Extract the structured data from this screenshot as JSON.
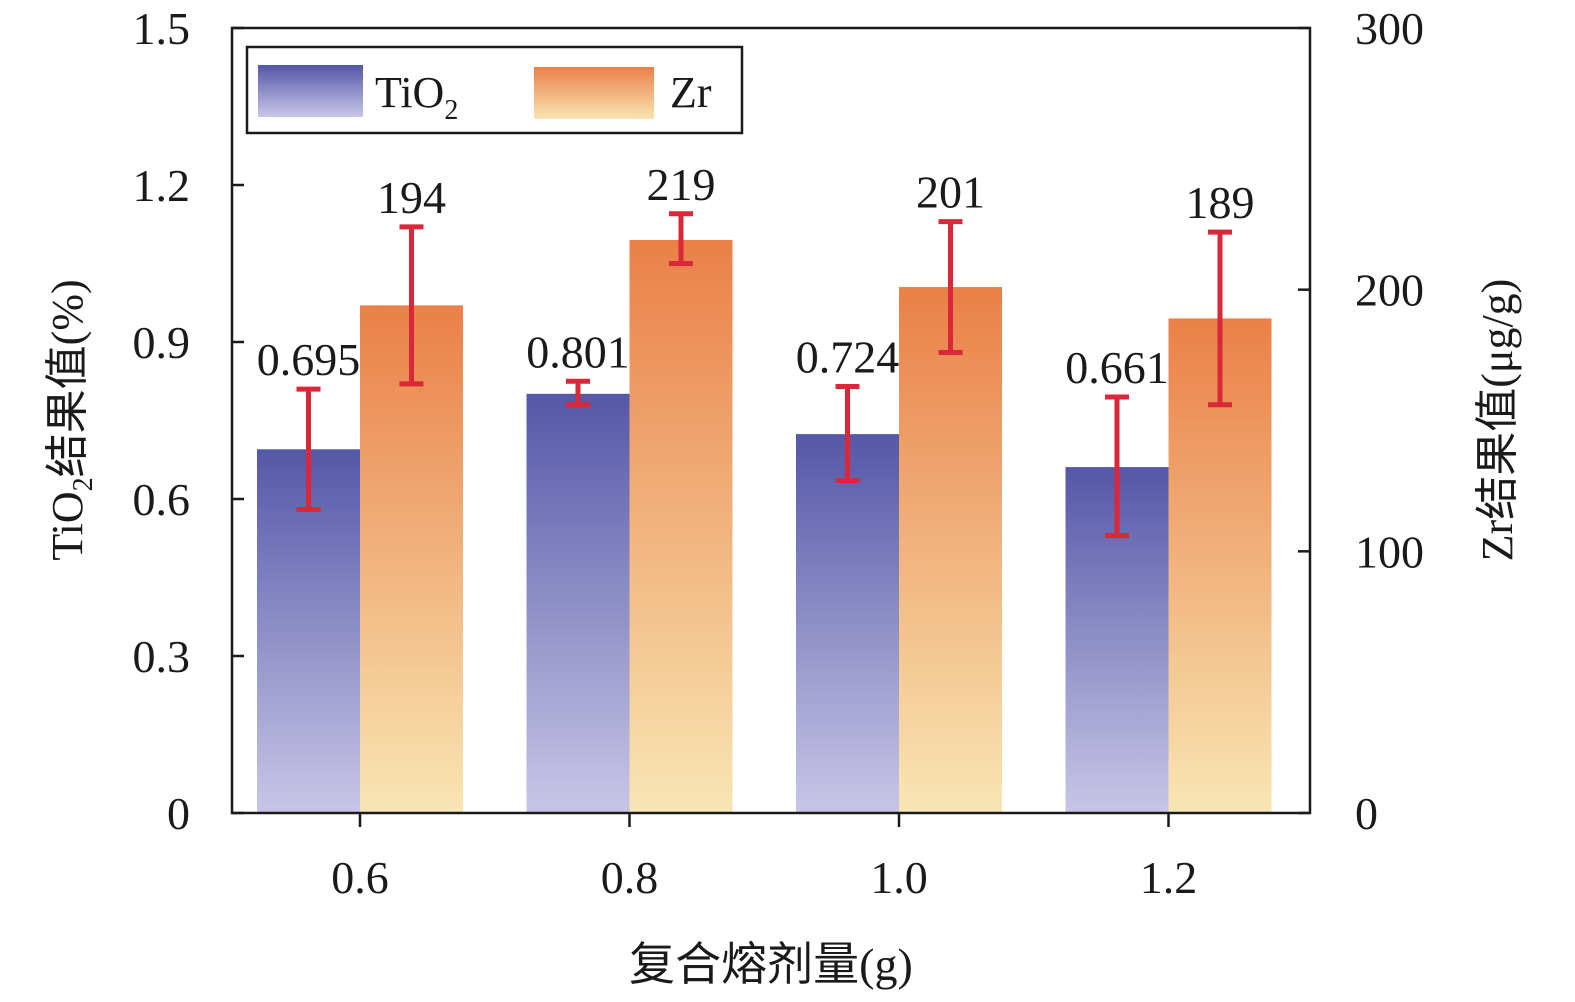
{
  "chart_data": {
    "type": "bar",
    "categories": [
      "0.6",
      "0.8",
      "1.0",
      "1.2"
    ],
    "xlabel": "复合熔剂量(g)",
    "ylabel_left": {
      "main": "TiO",
      "sub": "2",
      "rest": "结果值(%)"
    },
    "ylabel_right": "Zr结果值(μg/g)",
    "ylim_left": [
      0,
      1.5
    ],
    "ylim_right": [
      0,
      300
    ],
    "yticks_left": [
      "0",
      "0.3",
      "0.6",
      "0.9",
      "1.2",
      "1.5"
    ],
    "yticks_right": [
      "0",
      "100",
      "200",
      "300"
    ],
    "legend": {
      "position": "top-left",
      "items": [
        {
          "main": "TiO",
          "sub": "2"
        },
        {
          "main": "Zr",
          "sub": ""
        }
      ]
    },
    "series": [
      {
        "name": "TiO2",
        "axis": "left",
        "values": [
          0.695,
          0.801,
          0.724,
          0.661
        ],
        "labels": [
          "0.695",
          "0.801",
          "0.724",
          "0.661"
        ],
        "error_low": [
          0.58,
          0.78,
          0.635,
          0.53
        ],
        "error_high": [
          0.81,
          0.825,
          0.815,
          0.795
        ],
        "color_top": "#5557a8",
        "color_bottom": "#c8c6e6"
      },
      {
        "name": "Zr",
        "axis": "right",
        "values": [
          194,
          219,
          201,
          189
        ],
        "labels": [
          "194",
          "219",
          "201",
          "189"
        ],
        "error_low": [
          164,
          210,
          176,
          156
        ],
        "error_high": [
          224,
          229,
          226,
          222
        ],
        "color_top": "#ea8047",
        "color_bottom": "#f8e6b4"
      }
    ],
    "error_color": "#d9283a"
  }
}
